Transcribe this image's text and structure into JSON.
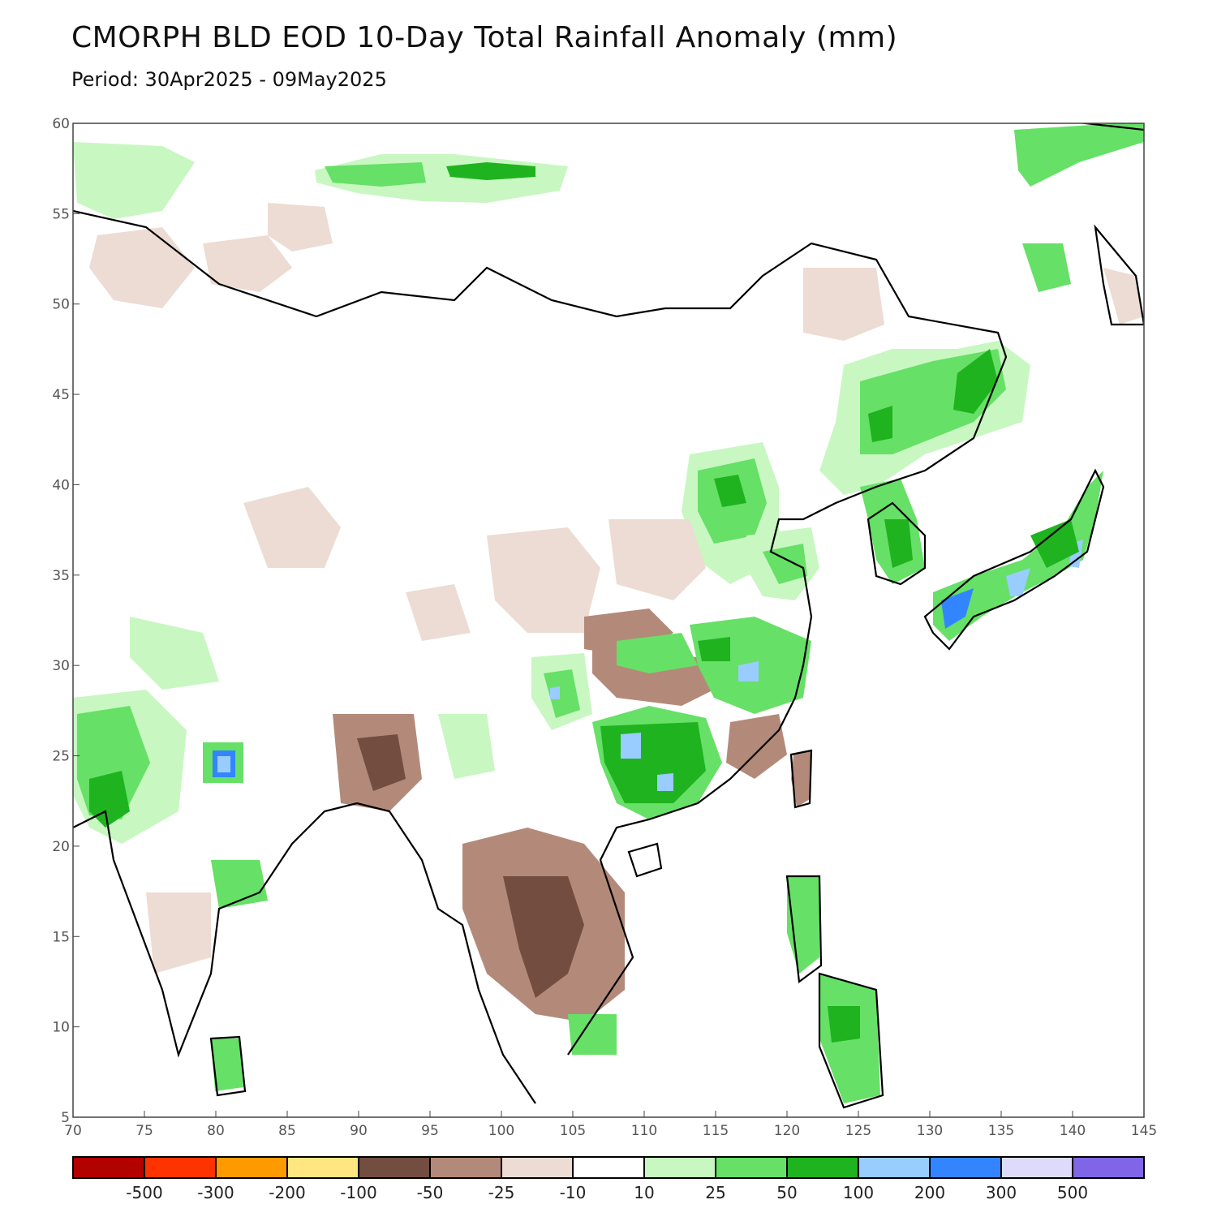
{
  "title": "CMORPH BLD EOD 10-Day Total Rainfall Anomaly (mm)",
  "subtitle": "Period: 30Apr2025 - 09May2025",
  "map": {
    "lon_range": [
      70,
      145
    ],
    "lat_range": [
      5,
      60
    ],
    "x_ticks": [
      "70",
      "75",
      "80",
      "85",
      "90",
      "95",
      "100",
      "105",
      "110",
      "115",
      "120",
      "125",
      "130",
      "135",
      "140",
      "145"
    ],
    "y_ticks": [
      "60",
      "55",
      "50",
      "45",
      "40",
      "35",
      "30",
      "25",
      "20",
      "15",
      "10",
      "5"
    ]
  },
  "colorbar": {
    "colors": [
      "#b30000",
      "#ff3300",
      "#ff9900",
      "#ffe680",
      "#734d3f",
      "#b38a7a",
      "#ecdcd4",
      "#ffffff",
      "#c8f7c1",
      "#66e066",
      "#1fb31f",
      "#99ccff",
      "#3385ff",
      "#dcdcfa",
      "#8066e6"
    ],
    "labels": [
      "-500",
      "-300",
      "-200",
      "-100",
      "-50",
      "-25",
      "-10",
      "10",
      "25",
      "50",
      "100",
      "200",
      "300",
      "500"
    ]
  }
}
